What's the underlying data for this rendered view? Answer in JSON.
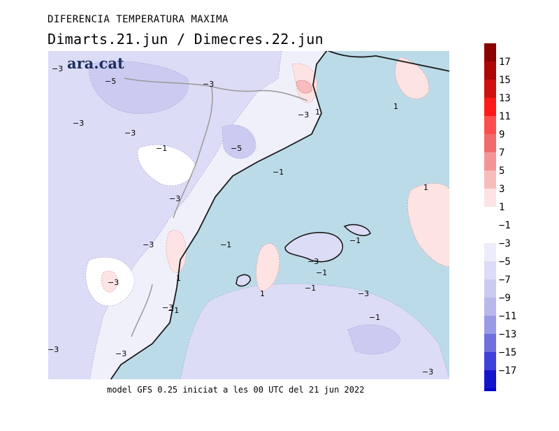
{
  "title": "DIFERENCIA TEMPERATURA MAXIMA",
  "subtitle": "Dimarts.21.jun  /  Dimecres.22.jun",
  "logo": "ara.cat",
  "footer": "model GFS 0.25 iniciat a les 00 UTC del 21 jun 2022",
  "colors": {
    "sea": "#bcdbe8",
    "land_base": "#f0f0fb",
    "neg3": "#dcdcf6",
    "neg5": "#cbcbf1",
    "pos1": "#fde3e3",
    "pos3": "#f8bcbc",
    "coast": "#1a1a1a",
    "border": "#999999"
  },
  "colorbar": {
    "positive": [
      {
        "label": "17",
        "color": "#8b0000"
      },
      {
        "label": "15",
        "color": "#ad0606"
      },
      {
        "label": "13",
        "color": "#d01010"
      },
      {
        "label": "11",
        "color": "#ff1a1a"
      },
      {
        "label": "9",
        "color": "#ff4d4d"
      },
      {
        "label": "7",
        "color": "#f26b6b"
      },
      {
        "label": "5",
        "color": "#f49494"
      },
      {
        "label": "3",
        "color": "#f8bcbc"
      },
      {
        "label": "1",
        "color": "#fde3e3"
      }
    ],
    "negative": [
      {
        "label": "−1",
        "color": "#ffffff"
      },
      {
        "label": "−3",
        "color": "#ececfb"
      },
      {
        "label": "−5",
        "color": "#dcdcf6"
      },
      {
        "label": "−7",
        "color": "#cbcbf1"
      },
      {
        "label": "−9",
        "color": "#b8b8ec"
      },
      {
        "label": "−11",
        "color": "#9a9ae6"
      },
      {
        "label": "−13",
        "color": "#6f6fe0"
      },
      {
        "label": "−15",
        "color": "#4040da"
      },
      {
        "label": "−17",
        "color": "#1414cc"
      }
    ],
    "bottom_color": "#0000c8"
  },
  "contour_labels": [
    {
      "id": "l1",
      "text": "−3"
    },
    {
      "id": "l2",
      "text": "−5"
    },
    {
      "id": "l3",
      "text": "−3"
    },
    {
      "id": "l4",
      "text": "−3"
    },
    {
      "id": "l5",
      "text": "−3"
    },
    {
      "id": "l6",
      "text": "−1"
    },
    {
      "id": "l7",
      "text": "−5"
    },
    {
      "id": "l8",
      "text": "−3"
    },
    {
      "id": "l9",
      "text": "1"
    },
    {
      "id": "l10",
      "text": "−1"
    },
    {
      "id": "l11",
      "text": "1"
    },
    {
      "id": "l12",
      "text": "1"
    },
    {
      "id": "l13",
      "text": "−3"
    },
    {
      "id": "l14",
      "text": "−3"
    },
    {
      "id": "l15",
      "text": "−1"
    },
    {
      "id": "l16",
      "text": "−1"
    },
    {
      "id": "l17",
      "text": "1"
    },
    {
      "id": "l18",
      "text": "−3"
    },
    {
      "id": "l19",
      "text": "−1"
    },
    {
      "id": "l20",
      "text": "−1"
    },
    {
      "id": "l21",
      "text": "1"
    },
    {
      "id": "l22",
      "text": "−3"
    },
    {
      "id": "l23",
      "text": "−1"
    },
    {
      "id": "l24",
      "text": "−3"
    },
    {
      "id": "l25",
      "text": "−1"
    },
    {
      "id": "l26",
      "text": "−3"
    },
    {
      "id": "l27",
      "text": "−3"
    },
    {
      "id": "l28",
      "text": "−3"
    },
    {
      "id": "l29",
      "text": "−3"
    }
  ]
}
